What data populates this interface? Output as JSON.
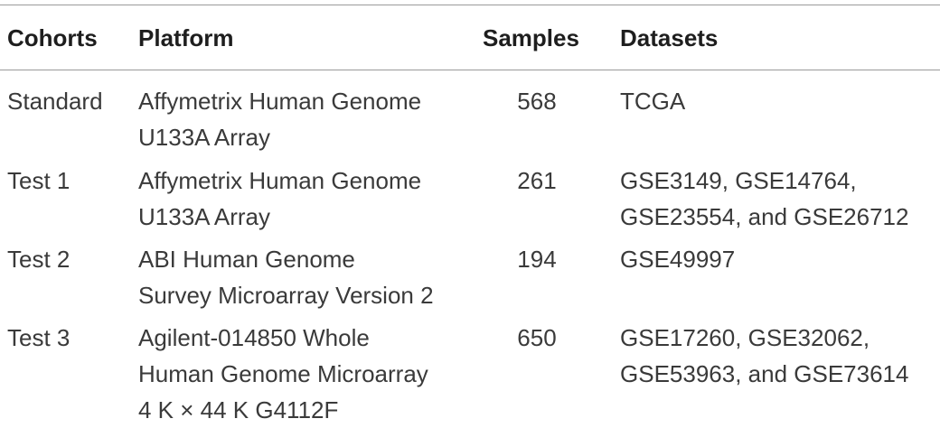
{
  "table": {
    "header": [
      "Cohorts",
      "Platform",
      "Samples",
      "Datasets"
    ],
    "rows": [
      {
        "cohort": "Standard",
        "platform": [
          "Affymetrix Human Genome",
          "U133A Array"
        ],
        "samples": 568,
        "datasets": [
          "TCGA"
        ]
      },
      {
        "cohort": "Test 1",
        "platform": [
          "Affymetrix Human Genome",
          "U133A Array"
        ],
        "samples": 261,
        "datasets": [
          "GSE3149, GSE14764,",
          "GSE23554, and GSE26712"
        ]
      },
      {
        "cohort": "Test 2",
        "platform": [
          "ABI Human Genome",
          "Survey Microarray Version 2"
        ],
        "samples": 194,
        "datasets": [
          "GSE49997"
        ]
      },
      {
        "cohort": "Test 3",
        "platform": [
          "Agilent-014850 Whole",
          "Human Genome Microarray",
          "4 K × 44 K G4112F"
        ],
        "samples": 650,
        "datasets": [
          "GSE17260, GSE32062,",
          "GSE53963, and GSE73614"
        ]
      }
    ]
  }
}
